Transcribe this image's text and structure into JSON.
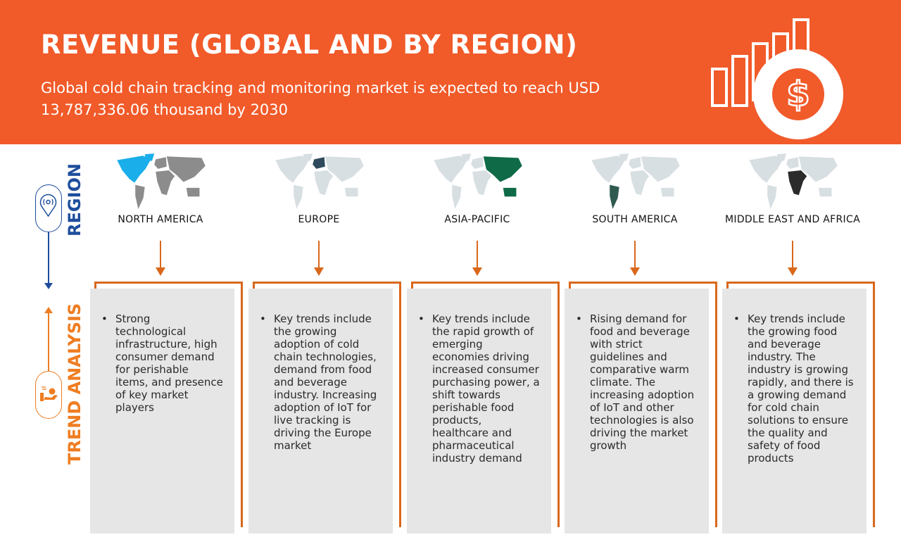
{
  "header": {
    "title": "REVENUE (GLOBAL AND BY REGION)",
    "subtitle": "Global cold chain tracking and monitoring market is expected to reach USD 13,787,336.06 thousand by 2030",
    "icon": "revenue-chart-dollar-icon"
  },
  "sidebar": {
    "region_label": "REGION",
    "trend_label": "TREND ANALYSIS",
    "region_icon": "location-pin-icon",
    "trend_icon": "hand-delivery-icon"
  },
  "colors": {
    "header": "#f15a29",
    "region": "#1e4d9c",
    "trend": "#ef7d22",
    "frame": "#d9681b",
    "card": "#e6e6e6"
  },
  "regions": [
    {
      "name": "NORTH AMERICA",
      "highlight": "north-america",
      "highlight_color": "#1aaeea",
      "base_color": "#8c8c8c",
      "trend": "Strong technological infrastructure, high consumer demand for perishable items, and presence of key market players"
    },
    {
      "name": "EUROPE",
      "highlight": "europe",
      "highlight_color": "#2e4a5c",
      "base_color": "#d8dfe3",
      "trend": "Key trends include the growing adoption of cold chain technologies, demand from food and beverage industry. Increasing adoption of IoT for live tracking is driving the Europe market"
    },
    {
      "name": "ASIA-PACIFIC",
      "highlight": "asia-pacific",
      "highlight_color": "#0f6a48",
      "base_color": "#d8dfe3",
      "trend": "Key trends include the rapid growth of emerging economies driving increased consumer purchasing power, a shift towards perishable food products, healthcare and pharmaceutical industry demand"
    },
    {
      "name": "SOUTH AMERICA",
      "highlight": "south-america",
      "highlight_color": "#2f5a50",
      "base_color": "#d8dfe3",
      "trend": "Rising demand for food and beverage with strict guidelines and comparative warm climate. The increasing adoption of IoT and other technologies is also driving the market growth"
    },
    {
      "name": "MIDDLE EAST AND AFRICA",
      "highlight": "middle-east-africa",
      "highlight_color": "#2b2b2b",
      "base_color": "#d8dfe3",
      "trend": "Key trends include the growing food and beverage industry. The industry is growing rapidly, and there is a growing demand for cold chain solutions to ensure the quality and safety of food products"
    }
  ]
}
